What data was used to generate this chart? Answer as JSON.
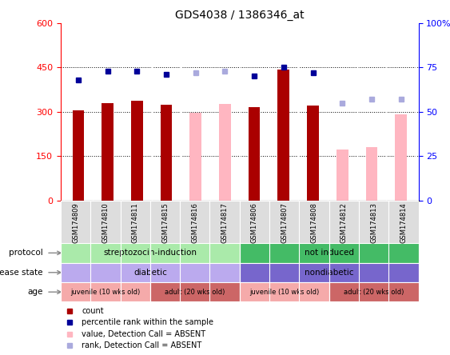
{
  "title": "GDS4038 / 1386346_at",
  "samples": [
    "GSM174809",
    "GSM174810",
    "GSM174811",
    "GSM174815",
    "GSM174816",
    "GSM174817",
    "GSM174806",
    "GSM174807",
    "GSM174808",
    "GSM174812",
    "GSM174813",
    "GSM174814"
  ],
  "count_values": [
    305,
    330,
    337,
    325,
    null,
    null,
    315,
    443,
    320,
    null,
    null,
    null
  ],
  "count_absent": [
    null,
    null,
    null,
    null,
    298,
    327,
    null,
    null,
    null,
    173,
    180,
    292
  ],
  "rank_present": [
    68,
    73,
    73,
    71,
    null,
    null,
    70,
    75,
    72,
    null,
    null,
    null
  ],
  "rank_absent": [
    null,
    null,
    null,
    null,
    72,
    73,
    null,
    null,
    null,
    55,
    57,
    57
  ],
  "ylim_left": [
    0,
    600
  ],
  "ylim_right": [
    0,
    100
  ],
  "yticks_left": [
    0,
    150,
    300,
    450,
    600
  ],
  "yticks_right": [
    0,
    25,
    50,
    75,
    100
  ],
  "bar_color_present": "#AA0000",
  "bar_color_absent": "#FFB6C1",
  "dot_color_present": "#000099",
  "dot_color_absent": "#AAAADD",
  "protocol_groups": [
    {
      "label": "streptozocin-induction",
      "start": 0,
      "end": 6,
      "color": "#AAEAAA"
    },
    {
      "label": "not induced",
      "start": 6,
      "end": 12,
      "color": "#44BB66"
    }
  ],
  "disease_groups": [
    {
      "label": "diabetic",
      "start": 0,
      "end": 6,
      "color": "#BBAAEE"
    },
    {
      "label": "nondiabetic",
      "start": 6,
      "end": 12,
      "color": "#7766CC"
    }
  ],
  "age_groups": [
    {
      "label": "juvenile (10 wks old)",
      "start": 0,
      "end": 3,
      "color": "#F5AAAA"
    },
    {
      "label": "adult (20 wks old)",
      "start": 3,
      "end": 6,
      "color": "#CC6666"
    },
    {
      "label": "juvenile (10 wks old)",
      "start": 6,
      "end": 9,
      "color": "#F5AAAA"
    },
    {
      "label": "adult (20 wks old)",
      "start": 9,
      "end": 12,
      "color": "#CC6666"
    }
  ],
  "legend_items": [
    {
      "label": "count",
      "color": "#AA0000",
      "marker": "s"
    },
    {
      "label": "percentile rank within the sample",
      "color": "#000099",
      "marker": "s"
    },
    {
      "label": "value, Detection Call = ABSENT",
      "color": "#FFB6C1",
      "marker": "s"
    },
    {
      "label": "rank, Detection Call = ABSENT",
      "color": "#AAAADD",
      "marker": "s"
    }
  ],
  "row_labels_order": [
    "protocol",
    "disease state",
    "age"
  ],
  "arrow_color": "#888888",
  "bg_color": "#DDDDDD"
}
